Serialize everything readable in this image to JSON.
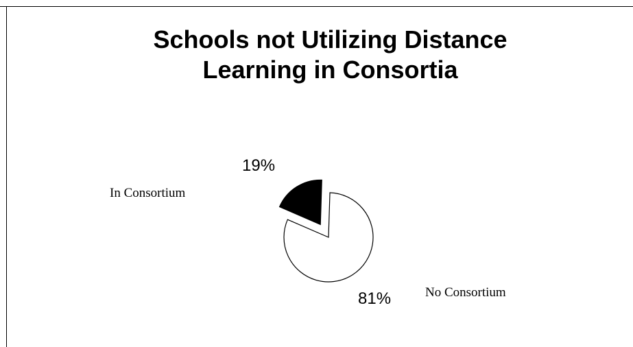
{
  "chart_data": {
    "type": "pie",
    "title": [
      "Schools not Utilizing Distance",
      "Learning in Consortia"
    ],
    "slices": [
      {
        "label": "In Consortium",
        "value": 19,
        "percent_label": "19%",
        "color": "#000000"
      },
      {
        "label": "No Consortium",
        "value": 81,
        "percent_label": "81%",
        "color": "#ffffff"
      }
    ]
  }
}
